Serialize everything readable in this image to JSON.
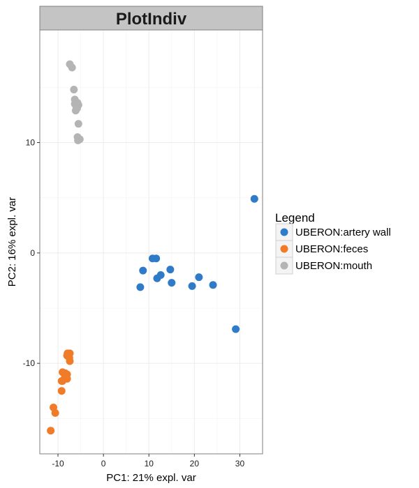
{
  "chart_data": {
    "type": "scatter",
    "title": "PlotIndiv",
    "xlabel": "PC1: 21% expl. var",
    "ylabel": "PC2: 16% expl. var",
    "xlim": [
      -14,
      35
    ],
    "ylim": [
      -18.2,
      20.2
    ],
    "x_ticks": [
      -10,
      0,
      10,
      20,
      30
    ],
    "y_ticks": [
      -10,
      0,
      10
    ],
    "x_tick_labels": [
      "-10",
      "0",
      "10",
      "20",
      "30"
    ],
    "y_tick_labels": [
      "-10",
      "0",
      "10"
    ],
    "grid": true,
    "legend": {
      "title": "Legend",
      "position": "right"
    },
    "series": [
      {
        "name": "UBERON:artery wall",
        "color": "#2f7bc7",
        "points": [
          [
            33.2,
            4.9
          ],
          [
            11.6,
            -0.5
          ],
          [
            10.8,
            -0.5
          ],
          [
            8.7,
            -1.6
          ],
          [
            12.6,
            -2.0
          ],
          [
            14.7,
            -1.5
          ],
          [
            11.8,
            -2.3
          ],
          [
            21.0,
            -2.2
          ],
          [
            15.0,
            -2.7
          ],
          [
            8.1,
            -3.1
          ],
          [
            19.5,
            -3.0
          ],
          [
            24.1,
            -2.9
          ],
          [
            29.1,
            -6.9
          ]
        ]
      },
      {
        "name": "UBERON:feces",
        "color": "#f07b28",
        "points": [
          [
            -7.4,
            -9.1
          ],
          [
            -7.9,
            -9.1
          ],
          [
            -8.0,
            -9.3
          ],
          [
            -7.5,
            -9.5
          ],
          [
            -7.4,
            -9.8
          ],
          [
            -9.0,
            -10.8
          ],
          [
            -8.4,
            -10.9
          ],
          [
            -8.0,
            -11.0
          ],
          [
            -8.5,
            -11.3
          ],
          [
            -8.0,
            -11.4
          ],
          [
            -9.2,
            -11.6
          ],
          [
            -9.0,
            -11.6
          ],
          [
            -9.2,
            -12.5
          ],
          [
            -11.0,
            -14.0
          ],
          [
            -10.6,
            -14.5
          ],
          [
            -11.6,
            -16.1
          ]
        ]
      },
      {
        "name": "UBERON:mouth",
        "color": "#b4b4b4",
        "points": [
          [
            -7.4,
            17.1
          ],
          [
            -6.9,
            16.8
          ],
          [
            -6.5,
            14.8
          ],
          [
            -6.3,
            13.9
          ],
          [
            -5.7,
            13.6
          ],
          [
            -5.5,
            13.4
          ],
          [
            -6.3,
            13.5
          ],
          [
            -6.0,
            13.3
          ],
          [
            -5.8,
            13.1
          ],
          [
            -6.1,
            12.9
          ],
          [
            -5.5,
            11.7
          ],
          [
            -5.7,
            10.5
          ],
          [
            -5.2,
            10.3
          ],
          [
            -5.6,
            10.2
          ]
        ]
      }
    ]
  }
}
